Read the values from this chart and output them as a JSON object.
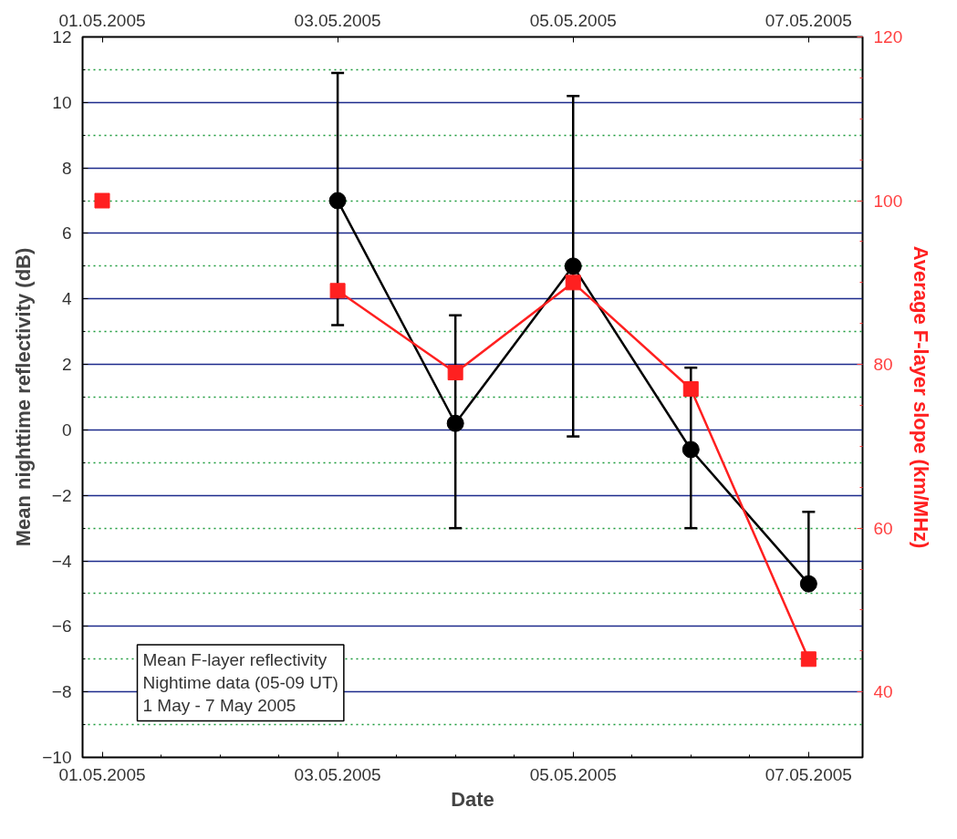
{
  "chart_data": {
    "type": "line",
    "xlabel": "Date",
    "ylabel": "Mean nighttime reflectivity (dB)",
    "y2label": "Average F-layer slope (km/MHz)",
    "x": [
      "2005-05-03",
      "2005-05-04",
      "2005-05-05",
      "2005-05-06",
      "2005-05-07"
    ],
    "series": [
      {
        "color": "#000000",
        "marker": "circle",
        "values": [
          7.0,
          0.2,
          5.0,
          -0.6,
          -4.7
        ],
        "errors": [
          [
            3.2,
            10.9
          ],
          [
            -3.0,
            3.5
          ],
          [
            -0.2,
            10.2
          ],
          [
            -3.0,
            1.9
          ],
          [
            -4.7,
            -2.5
          ]
        ]
      },
      {
        "color": "#ff2020",
        "marker": "square",
        "axis": "y2",
        "x": [
          "2005-05-01",
          "2005-05-02",
          "2005-05-03",
          "2005-05-04",
          "2005-05-05",
          "2005-05-06",
          "2005-05-07"
        ],
        "values": [
          100,
          null,
          89,
          79,
          90,
          77,
          44
        ]
      }
    ],
    "xlim": [
      "2005-04-30T20:00",
      "2005-05-07T11:00"
    ],
    "xticks": [
      {
        "value": "2005-05-01",
        "label": "01.05.2005"
      },
      {
        "value": "2005-05-03",
        "label": "03.05.2005"
      },
      {
        "value": "2005-05-05",
        "label": "05.05.2005"
      },
      {
        "value": "2005-05-07",
        "label": "07.05.2005"
      }
    ],
    "x2lim": [
      "2005-04-30T20:00",
      "2005-05-07T11:00"
    ],
    "x2ticks": [
      {
        "value": "2005-05-01",
        "label": "01.05.2005"
      },
      {
        "value": "2005-05-03",
        "label": "03.05.2005"
      },
      {
        "value": "2005-05-05",
        "label": "05.05.2005"
      },
      {
        "value": "2005-05-07",
        "label": "07.05.2005"
      }
    ],
    "ylim": [
      -10,
      12
    ],
    "yticks": [
      -10,
      -8,
      -6,
      -4,
      -2,
      0,
      2,
      4,
      6,
      8,
      10,
      12
    ],
    "y2lim": [
      32,
      120
    ],
    "y2ticks": [
      40,
      60,
      80,
      100,
      120
    ],
    "grid": true,
    "line_style": "solid",
    "annotations": [
      "Mean F-layer reflectivity\nNightime data (05-09 UT)\n1 May - 7 May 2005"
    ]
  }
}
